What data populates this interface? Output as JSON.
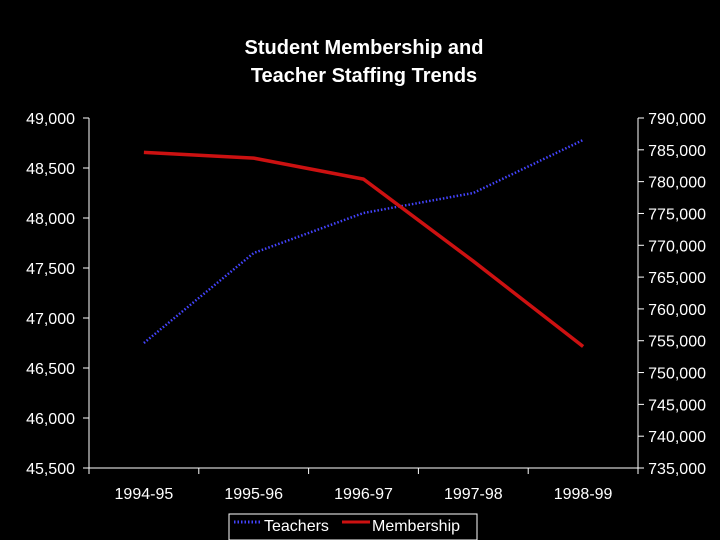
{
  "chart_data": {
    "type": "line",
    "title_lines": [
      "Student Membership and",
      "Teacher Staffing Trends"
    ],
    "categories": [
      "1994-95",
      "1995-96",
      "1996-97",
      "1997-98",
      "1998-99"
    ],
    "y_left": {
      "min": 45500,
      "max": 49000,
      "ticks": [
        "49,000",
        "48,500",
        "48,000",
        "47,500",
        "47,000",
        "46,500",
        "46,000",
        "45,500"
      ],
      "tick_values": [
        49000,
        48500,
        48000,
        47500,
        47000,
        46500,
        46000,
        45500
      ]
    },
    "y_right": {
      "min": 735000,
      "max": 790000,
      "ticks": [
        "790,000",
        "785,000",
        "780,000",
        "775,000",
        "770,000",
        "765,000",
        "760,000",
        "755,000",
        "750,000",
        "745,000",
        "740,000",
        "735,000"
      ],
      "tick_values": [
        790000,
        785000,
        780000,
        775000,
        770000,
        765000,
        760000,
        755000,
        750000,
        745000,
        740000,
        735000
      ]
    },
    "series": [
      {
        "name": "Teachers",
        "axis": "left",
        "values": [
          46750,
          47650,
          48050,
          48250,
          48780
        ],
        "color": "#4444ff",
        "style": "dotted"
      },
      {
        "name": "Membership",
        "axis": "right",
        "values": [
          784600,
          783700,
          780400,
          767500,
          754100
        ],
        "color": "#cc1111",
        "style": "solid"
      }
    ],
    "legend": {
      "placement": "bottom-center",
      "labels": [
        "Teachers",
        "Membership"
      ]
    },
    "grid": false
  }
}
